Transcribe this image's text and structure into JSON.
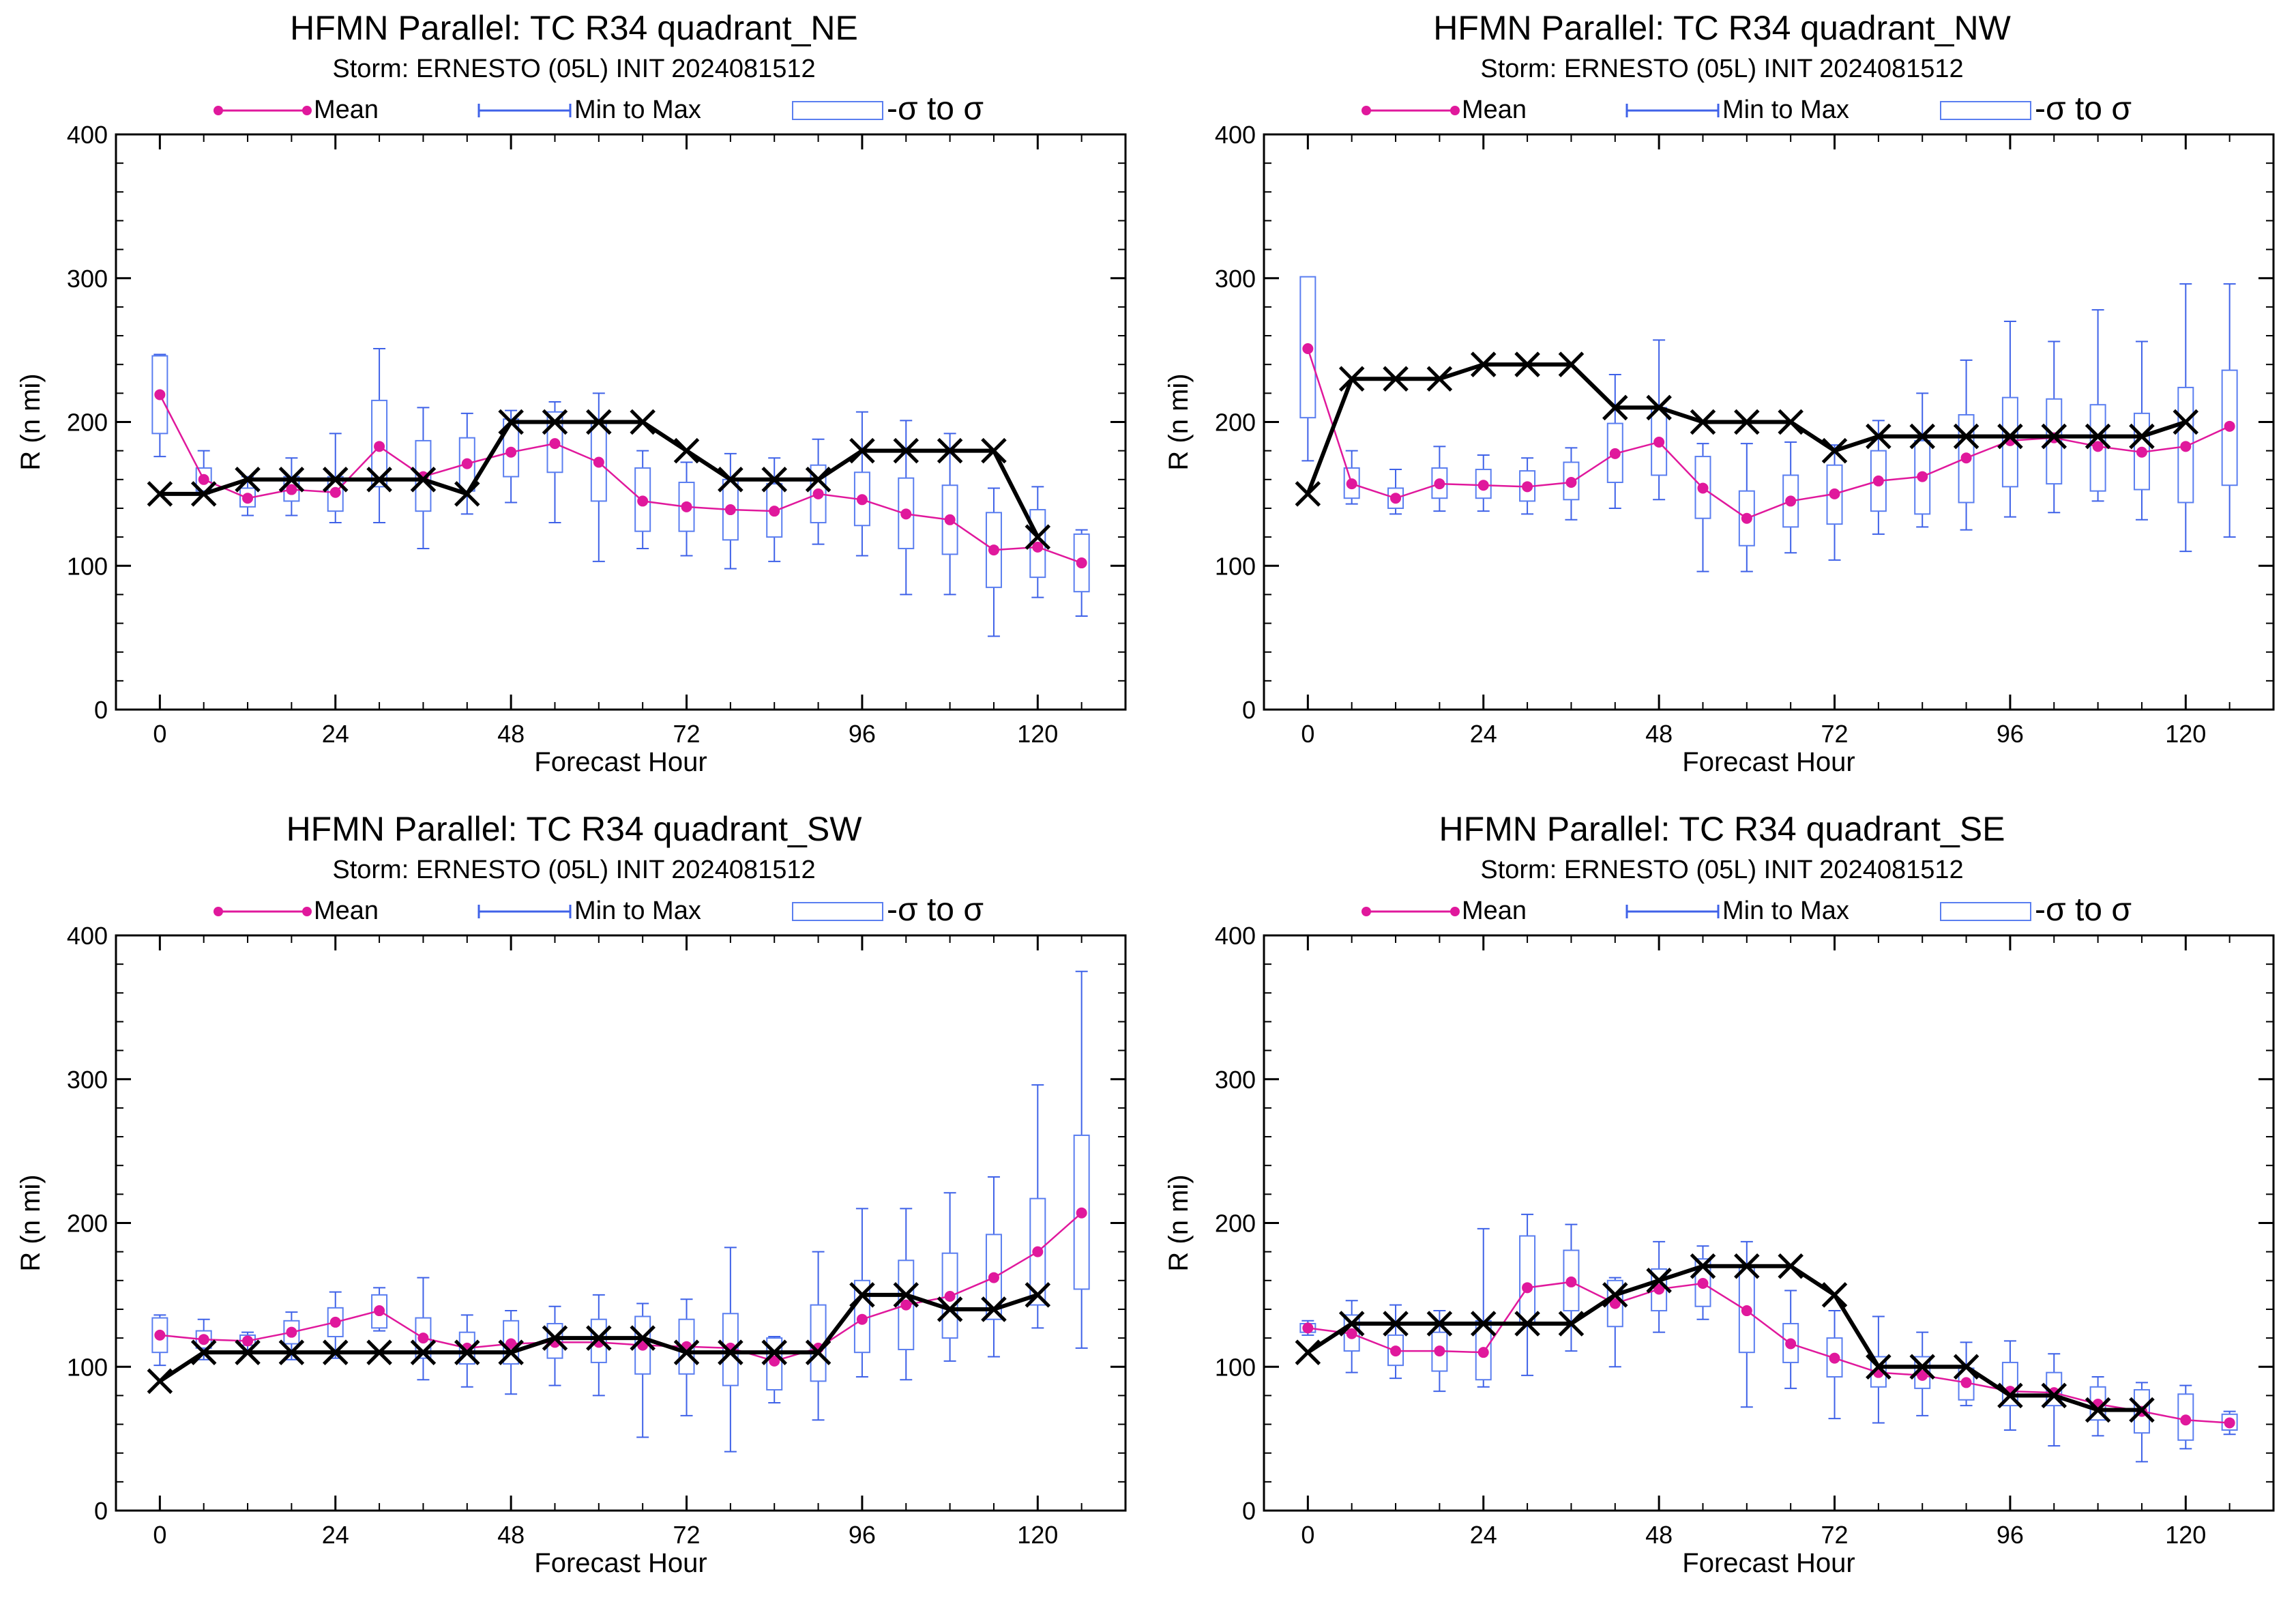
{
  "legend": {
    "mean": "Mean",
    "minmax": "Min to Max",
    "sigma": "-σ to σ"
  },
  "colors": {
    "mean": "#e0189c",
    "minmax": "#3f62e8",
    "sigma": "#5a7ef0",
    "best_track": "#000000",
    "axes": "#000000"
  },
  "panels": [
    {
      "title": "HFMN Parallel: TC  R34 quadrant_NE",
      "subtitle": "Storm: ERNESTO (05L) INIT 2024081512",
      "chart_data": {
        "type": "line",
        "xlabel": "Forecast Hour",
        "ylabel": "R (n mi)",
        "xlim": [
          -6,
          132
        ],
        "ylim": [
          0,
          400
        ],
        "xticks": [
          0,
          24,
          48,
          72,
          96,
          120
        ],
        "yticks": [
          0,
          100,
          200,
          300,
          400
        ],
        "x": [
          0,
          6,
          12,
          18,
          24,
          30,
          36,
          42,
          48,
          54,
          60,
          66,
          72,
          78,
          84,
          90,
          96,
          102,
          108,
          114,
          120,
          126
        ],
        "mean": [
          219,
          160,
          147,
          153,
          151,
          183,
          162,
          171,
          179,
          185,
          172,
          145,
          141,
          139,
          138,
          150,
          146,
          136,
          132,
          111,
          113,
          102
        ],
        "sigma_low": [
          192,
          152,
          141,
          145,
          138,
          155,
          138,
          152,
          162,
          165,
          145,
          124,
          124,
          118,
          120,
          130,
          128,
          112,
          108,
          85,
          92,
          82
        ],
        "sigma_high": [
          246,
          168,
          154,
          162,
          162,
          215,
          187,
          189,
          202,
          207,
          199,
          168,
          158,
          160,
          157,
          170,
          165,
          161,
          156,
          137,
          139,
          122
        ],
        "min": [
          176,
          150,
          135,
          135,
          130,
          130,
          112,
          136,
          144,
          130,
          103,
          112,
          107,
          98,
          103,
          115,
          107,
          80,
          80,
          51,
          78,
          65
        ],
        "max": [
          247,
          180,
          162,
          175,
          192,
          251,
          210,
          206,
          208,
          214,
          220,
          180,
          172,
          178,
          175,
          188,
          207,
          201,
          192,
          154,
          155,
          125
        ],
        "best_track_x": [
          0,
          6,
          12,
          18,
          24,
          30,
          36,
          42,
          48,
          54,
          60,
          66,
          72,
          78,
          84,
          90,
          96,
          102,
          108,
          114,
          120
        ],
        "best_track": [
          150,
          150,
          160,
          160,
          160,
          160,
          160,
          150,
          200,
          200,
          200,
          200,
          180,
          160,
          160,
          160,
          180,
          180,
          180,
          180,
          120
        ]
      }
    },
    {
      "title": "HFMN Parallel: TC  R34 quadrant_NW",
      "subtitle": "Storm: ERNESTO (05L) INIT 2024081512",
      "chart_data": {
        "type": "line",
        "xlabel": "Forecast Hour",
        "ylabel": "R (n mi)",
        "xlim": [
          -6,
          132
        ],
        "ylim": [
          0,
          400
        ],
        "xticks": [
          0,
          24,
          48,
          72,
          96,
          120
        ],
        "yticks": [
          0,
          100,
          200,
          300,
          400
        ],
        "x": [
          0,
          6,
          12,
          18,
          24,
          30,
          36,
          42,
          48,
          54,
          60,
          66,
          72,
          78,
          84,
          90,
          96,
          102,
          108,
          114,
          120,
          126
        ],
        "mean": [
          251,
          157,
          147,
          157,
          156,
          155,
          158,
          178,
          186,
          154,
          133,
          145,
          150,
          159,
          162,
          175,
          187,
          189,
          183,
          179,
          183,
          197
        ],
        "sigma_low": [
          203,
          147,
          140,
          147,
          147,
          145,
          146,
          158,
          163,
          133,
          114,
          127,
          129,
          138,
          136,
          144,
          155,
          157,
          152,
          153,
          144,
          156
        ],
        "sigma_high": [
          301,
          168,
          154,
          168,
          167,
          166,
          172,
          199,
          210,
          176,
          152,
          163,
          170,
          180,
          187,
          205,
          217,
          216,
          212,
          206,
          224,
          236
        ],
        "min": [
          173,
          143,
          136,
          138,
          138,
          136,
          132,
          140,
          146,
          96,
          96,
          109,
          104,
          122,
          127,
          125,
          134,
          137,
          145,
          132,
          110,
          120
        ],
        "max": [
          287,
          180,
          167,
          183,
          177,
          175,
          182,
          233,
          257,
          185,
          185,
          186,
          184,
          201,
          220,
          243,
          270,
          256,
          278,
          256,
          296,
          296
        ],
        "best_track_x": [
          0,
          6,
          12,
          18,
          24,
          30,
          36,
          42,
          48,
          54,
          60,
          66,
          72,
          78,
          84,
          90,
          96,
          102,
          108,
          114,
          120
        ],
        "best_track": [
          150,
          230,
          230,
          230,
          240,
          240,
          240,
          210,
          210,
          200,
          200,
          200,
          180,
          190,
          190,
          190,
          190,
          190,
          190,
          190,
          200
        ]
      }
    },
    {
      "title": "HFMN Parallel: TC  R34 quadrant_SW",
      "subtitle": "Storm: ERNESTO (05L) INIT 2024081512",
      "chart_data": {
        "type": "line",
        "xlabel": "Forecast Hour",
        "ylabel": "R (n mi)",
        "xlim": [
          -6,
          132
        ],
        "ylim": [
          0,
          400
        ],
        "xticks": [
          0,
          24,
          48,
          72,
          96,
          120
        ],
        "yticks": [
          0,
          100,
          200,
          300,
          400
        ],
        "x": [
          0,
          6,
          12,
          18,
          24,
          30,
          36,
          42,
          48,
          54,
          60,
          66,
          72,
          78,
          84,
          90,
          96,
          102,
          108,
          114,
          120,
          126
        ],
        "mean": [
          122,
          119,
          118,
          124,
          131,
          139,
          120,
          113,
          116,
          117,
          117,
          115,
          114,
          113,
          104,
          113,
          133,
          143,
          149,
          162,
          180,
          207
        ],
        "sigma_low": [
          110,
          113,
          115,
          116,
          121,
          127,
          106,
          102,
          102,
          106,
          103,
          95,
          95,
          87,
          84,
          90,
          110,
          112,
          120,
          133,
          143,
          154
        ],
        "sigma_high": [
          134,
          125,
          122,
          132,
          141,
          150,
          134,
          124,
          132,
          130,
          133,
          135,
          133,
          137,
          120,
          143,
          160,
          174,
          179,
          192,
          217,
          261
        ],
        "min": [
          101,
          105,
          110,
          105,
          106,
          125,
          91,
          86,
          81,
          87,
          80,
          51,
          66,
          41,
          75,
          63,
          93,
          91,
          104,
          107,
          127,
          113
        ],
        "max": [
          136,
          133,
          124,
          138,
          152,
          155,
          162,
          136,
          139,
          142,
          150,
          144,
          147,
          183,
          121,
          180,
          210,
          210,
          221,
          232,
          296,
          375
        ],
        "best_track_x": [
          0,
          6,
          12,
          18,
          24,
          30,
          36,
          42,
          48,
          54,
          60,
          66,
          72,
          78,
          84,
          90,
          96,
          102,
          108,
          114,
          120
        ],
        "best_track": [
          90,
          110,
          110,
          110,
          110,
          110,
          110,
          110,
          110,
          120,
          120,
          120,
          110,
          110,
          110,
          110,
          150,
          150,
          140,
          140,
          150
        ]
      }
    },
    {
      "title": "HFMN Parallel: TC  R34 quadrant_SE",
      "subtitle": "Storm: ERNESTO (05L) INIT 2024081512",
      "chart_data": {
        "type": "line",
        "xlabel": "Forecast Hour",
        "ylabel": "R (n mi)",
        "xlim": [
          -6,
          132
        ],
        "ylim": [
          0,
          400
        ],
        "xticks": [
          0,
          24,
          48,
          72,
          96,
          120
        ],
        "yticks": [
          0,
          100,
          200,
          300,
          400
        ],
        "x": [
          0,
          6,
          12,
          18,
          24,
          30,
          36,
          42,
          48,
          54,
          60,
          66,
          72,
          78,
          84,
          90,
          96,
          102,
          108,
          114,
          120,
          126
        ],
        "mean": [
          127,
          123,
          111,
          111,
          110,
          155,
          159,
          144,
          154,
          158,
          139,
          116,
          106,
          96,
          94,
          89,
          83,
          82,
          74,
          69,
          63,
          61
        ],
        "sigma_low": [
          124,
          111,
          101,
          97,
          91,
          130,
          139,
          128,
          139,
          142,
          110,
          103,
          93,
          86,
          85,
          77,
          73,
          73,
          63,
          54,
          49,
          56
        ],
        "sigma_high": [
          130,
          136,
          122,
          124,
          132,
          191,
          181,
          160,
          168,
          175,
          169,
          130,
          120,
          107,
          107,
          99,
          103,
          96,
          86,
          84,
          81,
          67
        ],
        "min": [
          122,
          96,
          92,
          83,
          86,
          94,
          111,
          100,
          124,
          133,
          72,
          85,
          64,
          61,
          66,
          73,
          56,
          45,
          52,
          34,
          43,
          53
        ],
        "max": [
          132,
          146,
          143,
          139,
          196,
          206,
          199,
          162,
          187,
          184,
          187,
          153,
          139,
          135,
          124,
          117,
          118,
          109,
          93,
          89,
          87,
          69
        ],
        "best_track_x": [
          0,
          6,
          12,
          18,
          24,
          30,
          36,
          42,
          48,
          54,
          60,
          66,
          72,
          78,
          84,
          90,
          96,
          102,
          108,
          114
        ],
        "best_track": [
          110,
          130,
          130,
          130,
          130,
          130,
          130,
          150,
          160,
          170,
          170,
          170,
          150,
          100,
          100,
          100,
          80,
          80,
          70,
          70
        ]
      }
    }
  ]
}
